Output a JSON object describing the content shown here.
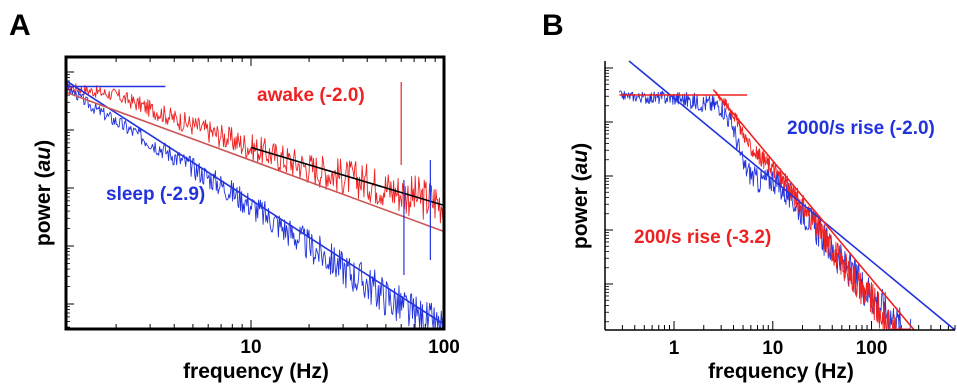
{
  "chart_data": [
    {
      "panel": "A",
      "type": "line",
      "xlabel": "frequency (Hz)",
      "ylabel": "power (au)",
      "xscale": "log",
      "yscale": "log",
      "xlim": [
        1.1,
        100
      ],
      "xticks": [
        {
          "value": 10,
          "label": "10"
        },
        {
          "value": 100,
          "label": "100"
        }
      ],
      "yticks_labeled": false,
      "grid": false,
      "colors": {
        "awake": "#ee2222",
        "sleep": "#2233dd",
        "fit": "#000000"
      },
      "series": [
        {
          "name": "awake (-2.0)",
          "color": "#ee2222",
          "slope": -2.0,
          "x": [
            1.1,
            2,
            4,
            7,
            10,
            20,
            40,
            70,
            100
          ],
          "y": [
            0.0,
            -0.15,
            -0.55,
            -0.85,
            -1.05,
            -1.4,
            -1.65,
            -1.9,
            -2.0
          ]
        },
        {
          "name": "sleep (-2.9)",
          "color": "#2233dd",
          "slope": -2.9,
          "x": [
            1.1,
            1.5,
            2.5,
            4,
            7,
            10,
            20,
            40,
            70,
            100
          ],
          "y": [
            0.0,
            -0.35,
            -0.8,
            -1.2,
            -1.7,
            -2.05,
            -2.75,
            -3.4,
            -3.95,
            -4.25
          ]
        }
      ],
      "fit_lines": [
        {
          "color": "#2233dd",
          "x": [
            1.1,
            3.6
          ],
          "y": [
            0.0,
            0.0
          ]
        },
        {
          "color": "#2233dd",
          "x": [
            1.1,
            100
          ],
          "y": [
            0.1,
            -4.1
          ]
        },
        {
          "color": "#000000",
          "x": [
            10,
            100
          ],
          "y": [
            -1.05,
            -2.05
          ]
        },
        {
          "color": "#cc5555",
          "x": [
            1.1,
            100
          ],
          "y": [
            -0.1,
            -2.5
          ]
        }
      ],
      "annotations": [
        {
          "text": "awake (-2.0)",
          "color": "#ee2222"
        },
        {
          "text": "sleep (-2.9)",
          "color": "#2233dd"
        }
      ]
    },
    {
      "panel": "B",
      "type": "line",
      "xlabel": "frequency (Hz)",
      "ylabel": "power (au)",
      "xscale": "log",
      "yscale": "log",
      "xlim": [
        0.2,
        700
      ],
      "xticks": [
        {
          "value": 1,
          "label": "1"
        },
        {
          "value": 10,
          "label": "10"
        },
        {
          "value": 100,
          "label": "100"
        }
      ],
      "yticks_labeled": false,
      "grid": false,
      "colors": {
        "fast": "#2233dd",
        "slow": "#ee2222"
      },
      "series": [
        {
          "name": "2000/s rise (-2.0)",
          "color": "#2233dd",
          "slope": -2.0,
          "x": [
            0.28,
            0.5,
            1,
            2,
            3,
            4,
            5,
            7,
            10,
            20,
            50,
            100,
            250
          ],
          "y": [
            0.0,
            -0.05,
            -0.05,
            -0.15,
            -0.2,
            -0.6,
            -1.3,
            -1.6,
            -1.55,
            -2.15,
            -3.1,
            -3.7,
            -4.5
          ]
        },
        {
          "name": "200/s rise (-3.2)",
          "color": "#ee2222",
          "slope": -3.2,
          "x": [
            2.7,
            3,
            4,
            6,
            10,
            20,
            50,
            100,
            250
          ],
          "y": [
            0.0,
            -0.05,
            -0.35,
            -1.0,
            -1.35,
            -2.05,
            -3.1,
            -3.8,
            -4.9
          ]
        }
      ],
      "fit_lines": [
        {
          "color": "#2233dd",
          "x": [
            0.35,
            700
          ],
          "y": [
            0.75,
            -5.2
          ]
        },
        {
          "color": "#ee2222",
          "x": [
            0.28,
            5.5
          ],
          "y": [
            0.0,
            0.0
          ]
        },
        {
          "color": "#ee2222",
          "x": [
            2.5,
            270
          ],
          "y": [
            0.1,
            -5.6
          ]
        }
      ],
      "annotations": [
        {
          "text": "2000/s rise (-2.0)",
          "color": "#2233dd"
        },
        {
          "text": "200/s rise (-3.2)",
          "color": "#ee2222"
        }
      ]
    }
  ],
  "labels": {
    "panelA": "A",
    "panelB": "B",
    "xlabelA": "frequency (Hz)",
    "xlabelB": "frequency (Hz)",
    "ylabelA_main": "power (",
    "ylabelA_unit": "au",
    "ylabelA_end": ")",
    "ylabelB_main": "power (",
    "ylabelB_unit": "au",
    "ylabelB_end": ")",
    "awake": "awake (-2.0)",
    "sleep": "sleep (-2.9)",
    "fast": "2000/s rise (-2.0)",
    "slow": "200/s rise (-3.2)"
  }
}
